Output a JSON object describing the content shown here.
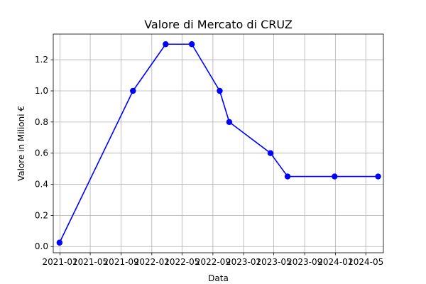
{
  "chart_data": {
    "type": "line",
    "title": "Valore di Mercato di CRUZ",
    "xlabel": "Data",
    "ylabel": "Valore in Milioni €",
    "x_tick_labels": [
      "2021-01",
      "2021-05",
      "2021-09",
      "2022-01",
      "2022-05",
      "2022-09",
      "2023-01",
      "2023-05",
      "2023-09",
      "2024-01",
      "2024-05"
    ],
    "y_ticks": [
      0.0,
      0.2,
      0.4,
      0.6,
      0.8,
      1.0,
      1.2
    ],
    "y_tick_labels": [
      "0.0",
      "0.2",
      "0.4",
      "0.6",
      "0.8",
      "1.0",
      "1.2"
    ],
    "ylim": [
      -0.04,
      1.365
    ],
    "xlim": [
      "2020-12-05",
      "2024-07-10"
    ],
    "grid": true,
    "series": [
      {
        "color": "#0000ff",
        "marker": "circle",
        "x": [
          "2020-12-30",
          "2021-10-18",
          "2022-02-25",
          "2022-06-09",
          "2022-09-28",
          "2022-11-05",
          "2023-04-18",
          "2023-06-25",
          "2023-12-29",
          "2024-06-19"
        ],
        "values": [
          0.025,
          1.0,
          1.3,
          1.3,
          1.0,
          0.8,
          0.6,
          0.45,
          0.45,
          0.45
        ]
      }
    ]
  }
}
